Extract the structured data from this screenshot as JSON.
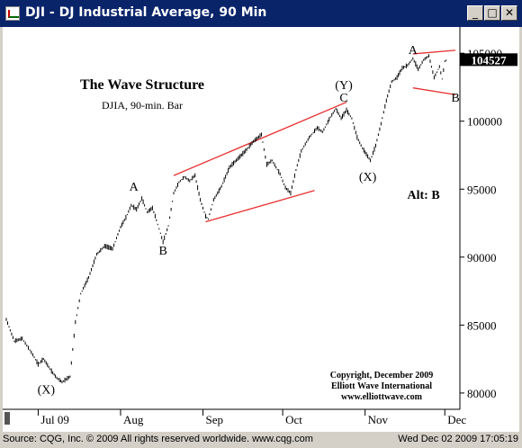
{
  "window": {
    "title": "DJI - DJ Industrial Average, 90 Min",
    "minimize_icon": "minimize-icon",
    "restore_icon": "restore-icon",
    "close_icon": "close-icon"
  },
  "status": {
    "left": "Source: CQG, Inc. © 2009 All rights reserved worldwide.  www.cqg.com",
    "right": "Wed Dec 02 2009 17:05:19"
  },
  "colors": {
    "bar": "#000000",
    "channel": "#e83030",
    "title_bg": "#0a246a",
    "price_box": "#000000"
  },
  "chart_data": {
    "type": "line",
    "title": "The Wave Structure",
    "subtitle": "DJIA, 90-min. Bar",
    "xlabel": "",
    "ylabel": "",
    "ylim": [
      7900,
      10660
    ],
    "yticks": [
      {
        "v": 8000,
        "label": "80000"
      },
      {
        "v": 8500,
        "label": "85000"
      },
      {
        "v": 9000,
        "label": "90000"
      },
      {
        "v": 9500,
        "label": "95000"
      },
      {
        "v": 10000,
        "label": "100000"
      },
      {
        "v": 10500,
        "label": "105000"
      }
    ],
    "xticks": [
      {
        "x": "2009-07-01",
        "label": "Jul 09"
      },
      {
        "x": "2009-08-01",
        "label": "Aug"
      },
      {
        "x": "2009-09-01",
        "label": "Sep"
      },
      {
        "x": "2009-10-01",
        "label": "Oct"
      },
      {
        "x": "2009-11-01",
        "label": "Nov"
      },
      {
        "x": "2009-12-01",
        "label": "Dec"
      }
    ],
    "xlim": [
      "2009-06-19",
      "2009-12-06"
    ],
    "last_price": {
      "value": 10452.7,
      "label": "104527"
    },
    "grid": false,
    "series": [
      {
        "values": [
          {
            "x": "2009-06-19",
            "y": 8540
          },
          {
            "x": "2009-06-22",
            "y": 8380
          },
          {
            "x": "2009-06-25",
            "y": 8400
          },
          {
            "x": "2009-06-29",
            "y": 8280
          },
          {
            "x": "2009-07-01",
            "y": 8210
          },
          {
            "x": "2009-07-03",
            "y": 8250
          },
          {
            "x": "2009-07-06",
            "y": 8160
          },
          {
            "x": "2009-07-08",
            "y": 8110
          },
          {
            "x": "2009-07-10",
            "y": 8080
          },
          {
            "x": "2009-07-13",
            "y": 8120
          },
          {
            "x": "2009-07-15",
            "y": 8520
          },
          {
            "x": "2009-07-17",
            "y": 8730
          },
          {
            "x": "2009-07-20",
            "y": 8850
          },
          {
            "x": "2009-07-23",
            "y": 9020
          },
          {
            "x": "2009-07-26",
            "y": 9080
          },
          {
            "x": "2009-07-29",
            "y": 9060
          },
          {
            "x": "2009-08-01",
            "y": 9220
          },
          {
            "x": "2009-08-03",
            "y": 9290
          },
          {
            "x": "2009-08-05",
            "y": 9380
          },
          {
            "x": "2009-08-07",
            "y": 9350
          },
          {
            "x": "2009-08-09",
            "y": 9430
          },
          {
            "x": "2009-08-11",
            "y": 9330
          },
          {
            "x": "2009-08-13",
            "y": 9360
          },
          {
            "x": "2009-08-15",
            "y": 9240
          },
          {
            "x": "2009-08-17",
            "y": 9110
          },
          {
            "x": "2009-08-19",
            "y": 9230
          },
          {
            "x": "2009-08-21",
            "y": 9470
          },
          {
            "x": "2009-08-23",
            "y": 9550
          },
          {
            "x": "2009-08-25",
            "y": 9590
          },
          {
            "x": "2009-08-27",
            "y": 9560
          },
          {
            "x": "2009-08-29",
            "y": 9600
          },
          {
            "x": "2009-08-31",
            "y": 9420
          },
          {
            "x": "2009-09-02",
            "y": 9300
          },
          {
            "x": "2009-09-03",
            "y": 9280
          },
          {
            "x": "2009-09-05",
            "y": 9420
          },
          {
            "x": "2009-09-08",
            "y": 9520
          },
          {
            "x": "2009-09-11",
            "y": 9660
          },
          {
            "x": "2009-09-14",
            "y": 9720
          },
          {
            "x": "2009-09-17",
            "y": 9780
          },
          {
            "x": "2009-09-20",
            "y": 9850
          },
          {
            "x": "2009-09-23",
            "y": 9900
          },
          {
            "x": "2009-09-25",
            "y": 9680
          },
          {
            "x": "2009-09-27",
            "y": 9710
          },
          {
            "x": "2009-09-30",
            "y": 9610
          },
          {
            "x": "2009-10-02",
            "y": 9510
          },
          {
            "x": "2009-10-04",
            "y": 9470
          },
          {
            "x": "2009-10-06",
            "y": 9640
          },
          {
            "x": "2009-10-08",
            "y": 9780
          },
          {
            "x": "2009-10-11",
            "y": 9880
          },
          {
            "x": "2009-10-14",
            "y": 9950
          },
          {
            "x": "2009-10-16",
            "y": 9920
          },
          {
            "x": "2009-10-19",
            "y": 10030
          },
          {
            "x": "2009-10-21",
            "y": 10090
          },
          {
            "x": "2009-10-23",
            "y": 10020
          },
          {
            "x": "2009-10-25",
            "y": 10080
          },
          {
            "x": "2009-10-27",
            "y": 10020
          },
          {
            "x": "2009-10-29",
            "y": 9880
          },
          {
            "x": "2009-10-31",
            "y": 9800
          },
          {
            "x": "2009-11-02",
            "y": 9740
          },
          {
            "x": "2009-11-03",
            "y": 9710
          },
          {
            "x": "2009-11-05",
            "y": 9820
          },
          {
            "x": "2009-11-07",
            "y": 9980
          },
          {
            "x": "2009-11-09",
            "y": 10150
          },
          {
            "x": "2009-11-11",
            "y": 10290
          },
          {
            "x": "2009-11-13",
            "y": 10320
          },
          {
            "x": "2009-11-15",
            "y": 10390
          },
          {
            "x": "2009-11-17",
            "y": 10410
          },
          {
            "x": "2009-11-19",
            "y": 10460
          },
          {
            "x": "2009-11-21",
            "y": 10380
          },
          {
            "x": "2009-11-23",
            "y": 10450
          },
          {
            "x": "2009-11-25",
            "y": 10480
          },
          {
            "x": "2009-11-27",
            "y": 10320
          },
          {
            "x": "2009-11-29",
            "y": 10400
          },
          {
            "x": "2009-11-30",
            "y": 10310
          },
          {
            "x": "2009-12-01",
            "y": 10440
          },
          {
            "x": "2009-12-02",
            "y": 10452
          }
        ]
      }
    ],
    "trendlines": [
      {
        "x1": "2009-08-21",
        "y1": 9600,
        "x2": "2009-10-25",
        "y2": 10140
      },
      {
        "x1": "2009-09-02",
        "y1": 9260,
        "x2": "2009-10-13",
        "y2": 9490
      },
      {
        "x1": "2009-11-19",
        "y1": 10495,
        "x2": "2009-12-05",
        "y2": 10522
      },
      {
        "x1": "2009-11-19",
        "y1": 10245,
        "x2": "2009-12-05",
        "y2": 10195
      }
    ],
    "annotations": [
      {
        "text": "(X)",
        "x": "2009-07-04",
        "y": 7995
      },
      {
        "text": "A",
        "x": "2009-08-06",
        "y": 9490
      },
      {
        "text": "B",
        "x": "2009-08-17",
        "y": 9020
      },
      {
        "text": "(Y)",
        "x": "2009-10-24",
        "y": 10235
      },
      {
        "text": "C",
        "x": "2009-10-24",
        "y": 10145
      },
      {
        "text": "(X)",
        "x": "2009-11-02",
        "y": 9560
      },
      {
        "text": "A",
        "x": "2009-11-19",
        "y": 10495
      },
      {
        "text": "B",
        "x": "2009-12-05",
        "y": 10145
      },
      {
        "text": "Alt:  B",
        "x": "2009-11-23",
        "y": 9430
      }
    ],
    "copyright": [
      "Copyright, December 2009",
      "Elliott Wave International",
      "www.elliottwave.com"
    ]
  }
}
